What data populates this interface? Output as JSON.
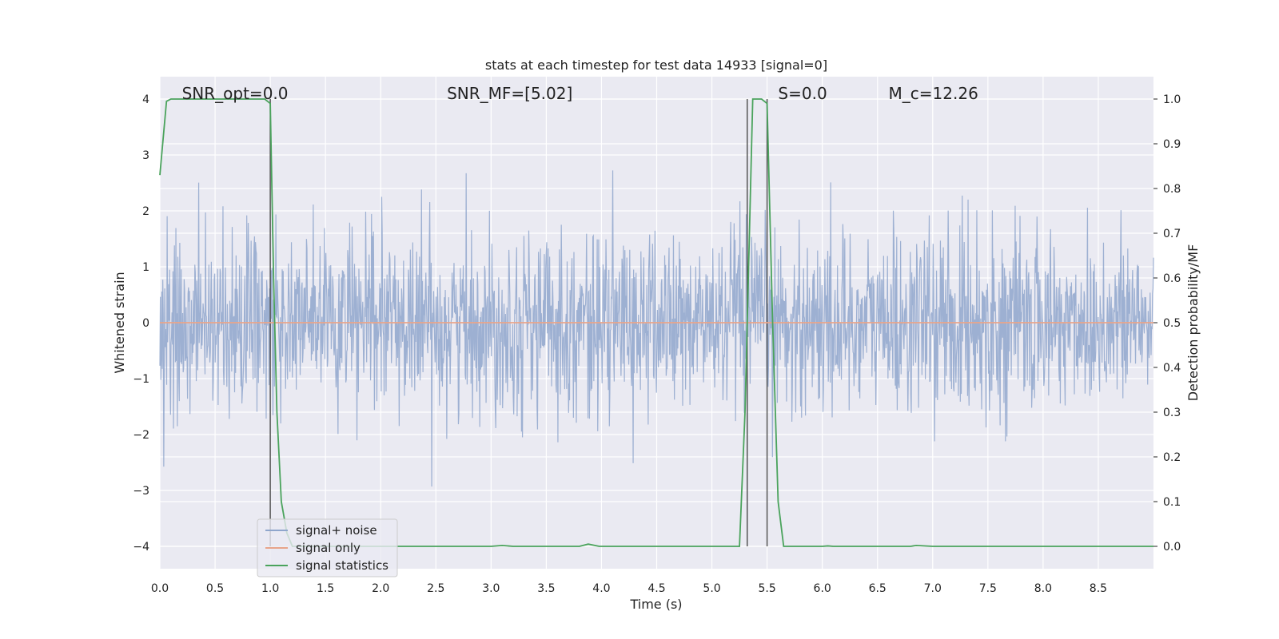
{
  "chart_data": {
    "type": "line",
    "title": "stats at each timestep for test data 14933 [signal=0]",
    "xlabel": "Time (s)",
    "ylabel": "Whitened strain",
    "ylabel_right": "Detection probability/MF",
    "xlim": [
      0,
      9.0
    ],
    "ylim": [
      -4.4,
      4.4
    ],
    "ylim_right": [
      -0.05,
      1.05
    ],
    "x_ticks": [
      0.0,
      0.5,
      1.0,
      1.5,
      2.0,
      2.5,
      3.0,
      3.5,
      4.0,
      4.5,
      5.0,
      5.5,
      6.0,
      6.5,
      7.0,
      7.5,
      8.0,
      8.5
    ],
    "x_tick_labels": [
      "0.0",
      "0.5",
      "1.0",
      "1.5",
      "2.0",
      "2.5",
      "3.0",
      "3.5",
      "4.0",
      "4.5",
      "5.0",
      "5.5",
      "6.0",
      "6.5",
      "7.0",
      "7.5",
      "8.0",
      "8.5"
    ],
    "y_ticks": [
      -4,
      -3,
      -2,
      -1,
      0,
      1,
      2,
      3,
      4
    ],
    "y_tick_labels": [
      "−4",
      "−3",
      "−2",
      "−1",
      "0",
      "1",
      "2",
      "3",
      "4"
    ],
    "y_right_ticks": [
      0.0,
      0.1,
      0.2,
      0.3,
      0.4,
      0.5,
      0.6,
      0.7,
      0.8,
      0.9,
      1.0
    ],
    "y_right_tick_labels": [
      "0.0",
      "0.1",
      "0.2",
      "0.3",
      "0.4",
      "0.5",
      "0.6",
      "0.7",
      "0.8",
      "0.9",
      "1.0"
    ],
    "grid": true,
    "legend_position": "bottom-left",
    "annotations": [
      {
        "text": "SNR_opt=0.0",
        "x": 0.2
      },
      {
        "text": "SNR_MF=[5.02]",
        "x": 2.6
      },
      {
        "text": "S=0.0",
        "x": 5.6
      },
      {
        "text": "M_c=12.26",
        "x": 6.6
      }
    ],
    "vertical_lines": [
      {
        "x": 1.0,
        "y_range": [
          -4,
          4
        ]
      },
      {
        "x": 5.32,
        "y_range": [
          -4,
          4
        ]
      },
      {
        "x": 5.5,
        "y_range": [
          -4,
          4
        ]
      }
    ],
    "series": [
      {
        "name": "signal+ noise",
        "color": "#8fa6cc",
        "axis": "left",
        "style": "noise",
        "sample_count": 2048,
        "envelope_std": 0.8
      },
      {
        "name": "signal only",
        "color": "#e8a48a",
        "axis": "left",
        "style": "line",
        "x": [
          0,
          9.0
        ],
        "y": [
          0,
          0
        ]
      },
      {
        "name": "signal statistics",
        "color": "#4aa35c",
        "axis": "right",
        "style": "line",
        "x": [
          0.0,
          0.06,
          0.1,
          0.2,
          0.5,
          0.95,
          1.0,
          1.03,
          1.06,
          1.1,
          1.15,
          1.2,
          1.5,
          2.0,
          2.5,
          3.0,
          3.1,
          3.2,
          3.5,
          3.8,
          3.88,
          3.98,
          4.2,
          4.5,
          5.0,
          5.25,
          5.3,
          5.37,
          5.45,
          5.5,
          5.55,
          5.6,
          5.65,
          6.0,
          6.05,
          6.1,
          6.5,
          6.8,
          6.85,
          7.0,
          7.5,
          8.0,
          8.5,
          9.0
        ],
        "y": [
          0.83,
          0.995,
          1.0,
          1.0,
          1.0,
          1.0,
          0.99,
          0.6,
          0.3,
          0.1,
          0.03,
          0.0,
          0.0,
          0.0,
          0.0,
          0.0,
          0.002,
          0.0,
          0.0,
          0.0,
          0.005,
          0.0,
          0.0,
          0.0,
          0.0,
          0.0,
          0.3,
          1.0,
          1.0,
          0.99,
          0.5,
          0.1,
          0.0,
          0.0,
          0.001,
          0.0,
          0.0,
          0.0,
          0.002,
          0.0,
          0.0,
          0.0,
          0.0,
          0.0
        ]
      }
    ]
  }
}
